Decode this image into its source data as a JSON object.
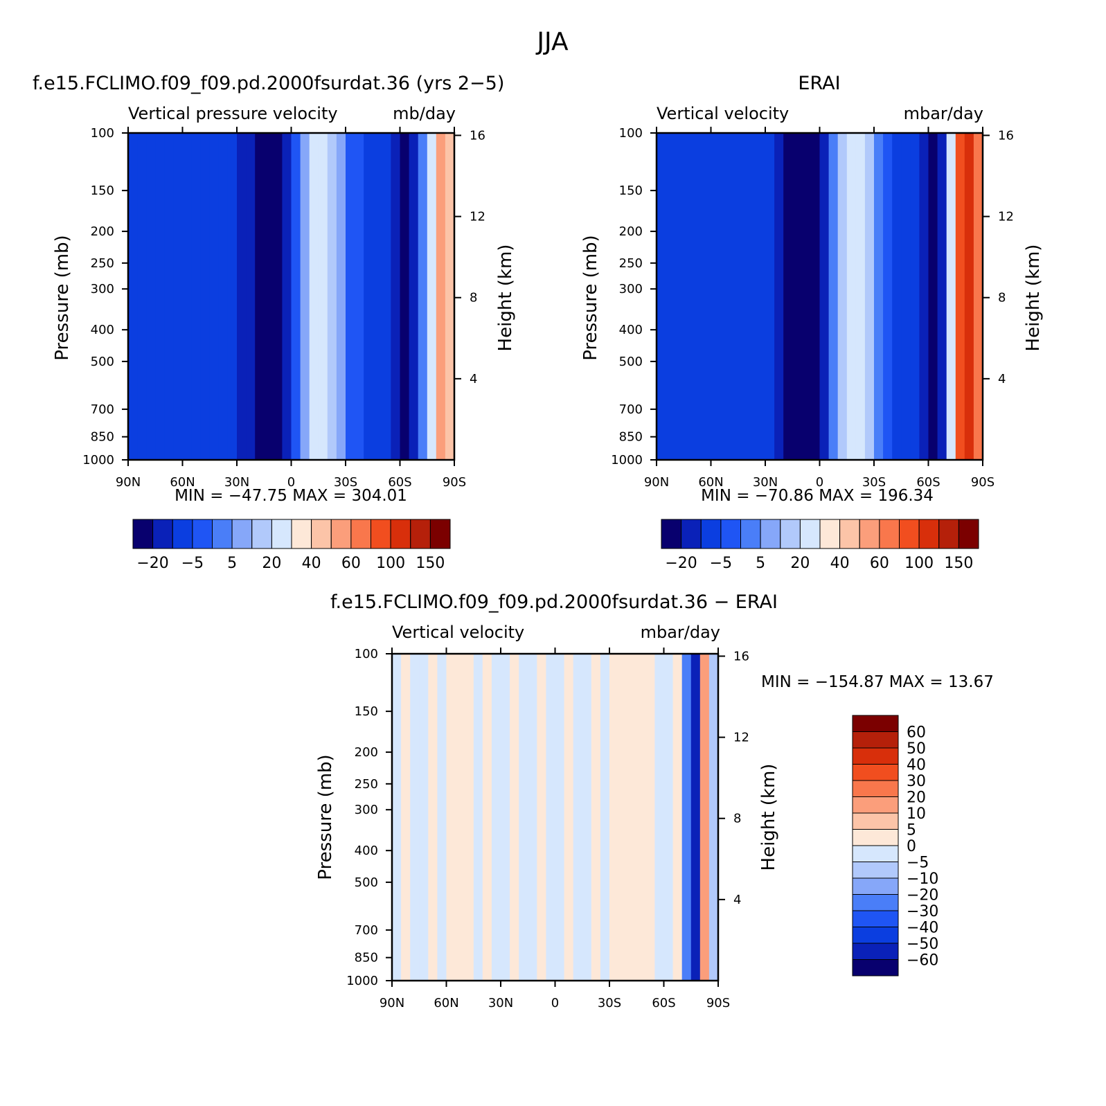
{
  "figure": {
    "title": "JJA"
  },
  "chart_data": [
    {
      "type": "heatmap",
      "panel_title": "f.e15.FCLIMO.f09_f09.pd.2000fsurdat.36 (yrs 2−5)",
      "left_label": "Vertical pressure velocity",
      "right_label": "mb/day",
      "xlabel": "",
      "ylabel": "Pressure (mb)",
      "ylabel_right": "Height (km)",
      "x_ticks": [
        "90N",
        "60N",
        "30N",
        "0",
        "30S",
        "60S",
        "90S"
      ],
      "y_ticks": [
        "100",
        "150",
        "200",
        "250",
        "300",
        "400",
        "500",
        "700",
        "850",
        "1000"
      ],
      "height_ticks": [
        "16",
        "12",
        "8",
        "4"
      ],
      "stats": "MIN = −47.75   MAX = 304.01",
      "colorbar": {
        "orientation": "horizontal",
        "labels": [
          "−20",
          "−5",
          "5",
          "20",
          "40",
          "60",
          "100",
          "150"
        ],
        "levels": [
          -20,
          -10,
          -5,
          0,
          5,
          10,
          20,
          30,
          40,
          50,
          60,
          80,
          100,
          120,
          150
        ],
        "colors": [
          "#08006e",
          "#0a21b8",
          "#0b3ee0",
          "#1f55f4",
          "#4a7ef8",
          "#86a7f9",
          "#b1c9fb",
          "#d6e7fd",
          "#fde8d8",
          "#fcc4a8",
          "#fb9e7b",
          "#f9774c",
          "#f14e1f",
          "#d82f0b",
          "#b5200a",
          "#7b0000"
        ]
      },
      "features": [
        {
          "lat": 12,
          "width": 13,
          "value": -30
        },
        {
          "lat": -16,
          "width": 12,
          "value": 24
        },
        {
          "lat": -62,
          "width": 6,
          "value": -22
        },
        {
          "lat": -84,
          "width": 8,
          "value": 60
        }
      ]
    },
    {
      "type": "heatmap",
      "panel_title": "ERAI",
      "left_label": "Vertical velocity",
      "right_label": "mbar/day",
      "xlabel": "",
      "ylabel": "Pressure (mb)",
      "ylabel_right": "Height (km)",
      "x_ticks": [
        "90N",
        "60N",
        "30N",
        "0",
        "30S",
        "60S",
        "90S"
      ],
      "y_ticks": [
        "100",
        "150",
        "200",
        "250",
        "300",
        "400",
        "500",
        "700",
        "850",
        "1000"
      ],
      "height_ticks": [
        "16",
        "12",
        "8",
        "4"
      ],
      "stats": "MIN = −70.86   MAX = 196.34",
      "colorbar": {
        "orientation": "horizontal",
        "labels": [
          "−20",
          "−5",
          "5",
          "20",
          "40",
          "60",
          "100",
          "150"
        ],
        "levels": [
          -20,
          -10,
          -5,
          0,
          5,
          10,
          20,
          30,
          40,
          50,
          60,
          80,
          100,
          120,
          150
        ],
        "colors": [
          "#08006e",
          "#0a21b8",
          "#0b3ee0",
          "#1f55f4",
          "#4a7ef8",
          "#86a7f9",
          "#b1c9fb",
          "#d6e7fd",
          "#fde8d8",
          "#fcc4a8",
          "#fb9e7b",
          "#f9774c",
          "#f14e1f",
          "#d82f0b",
          "#b5200a",
          "#7b0000"
        ]
      },
      "features": [
        {
          "lat": 9,
          "width": 12,
          "value": -34
        },
        {
          "lat": -18,
          "width": 12,
          "value": 25
        },
        {
          "lat": -64,
          "width": 6,
          "value": -24
        },
        {
          "lat": -82,
          "width": 9,
          "value": 110
        }
      ]
    },
    {
      "type": "heatmap",
      "panel_title": "f.e15.FCLIMO.f09_f09.pd.2000fsurdat.36 − ERAI",
      "left_label": "Vertical velocity",
      "right_label": "mbar/day",
      "xlabel": "",
      "ylabel": "Pressure (mb)",
      "ylabel_right": "Height (km)",
      "x_ticks": [
        "90N",
        "60N",
        "30N",
        "0",
        "30S",
        "60S",
        "90S"
      ],
      "y_ticks": [
        "100",
        "150",
        "200",
        "250",
        "300",
        "400",
        "500",
        "700",
        "850",
        "1000"
      ],
      "height_ticks": [
        "16",
        "12",
        "8",
        "4"
      ],
      "stats": "MIN = −154.87   MAX =  13.67",
      "colorbar": {
        "orientation": "vertical",
        "labels": [
          "60",
          "50",
          "40",
          "30",
          "20",
          "10",
          "5",
          "0",
          "−5",
          "−10",
          "−20",
          "−30",
          "−40",
          "−50",
          "−60"
        ],
        "levels": [
          -60,
          -50,
          -40,
          -30,
          -20,
          -10,
          -5,
          0,
          5,
          10,
          20,
          30,
          40,
          50,
          60
        ],
        "colors": [
          "#08006e",
          "#0a21b8",
          "#0b3ee0",
          "#1f55f4",
          "#4a7ef8",
          "#86a7f9",
          "#b1c9fb",
          "#d6e7fd",
          "#fde8d8",
          "#fcc4a8",
          "#fb9e7b",
          "#f9774c",
          "#f14e1f",
          "#d82f0b",
          "#b5200a",
          "#7b0000"
        ]
      },
      "features": [
        {
          "lat": 52,
          "width": 12,
          "value": 2
        },
        {
          "lat": 20,
          "width": 12,
          "value": -2
        },
        {
          "lat": -38,
          "width": 14,
          "value": 2
        },
        {
          "lat": -78,
          "width": 6,
          "value": -60
        }
      ]
    }
  ]
}
